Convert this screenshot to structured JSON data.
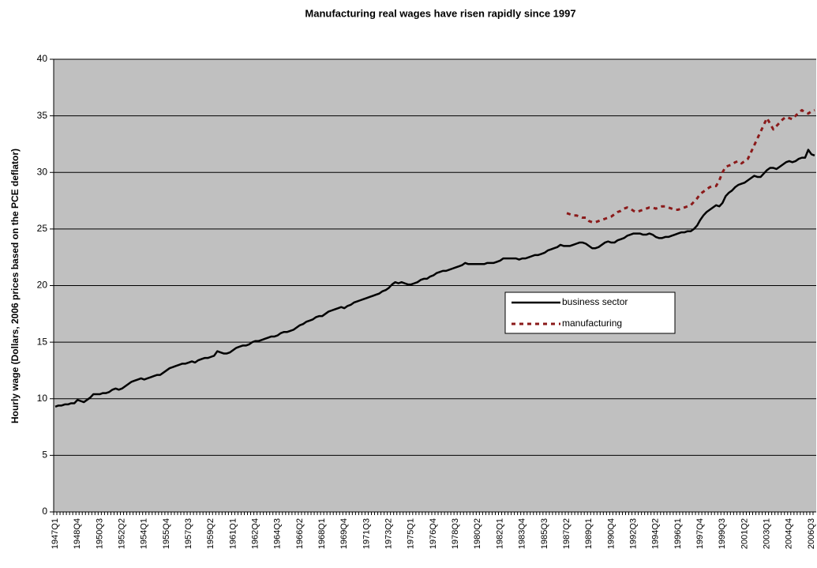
{
  "chart_data": {
    "type": "line",
    "title": "Manufacturing real wages have risen rapidly since 1997",
    "y_label": "Hourly wage (Dollars, 2006 prices based on the PCE deflator)",
    "ylim": [
      0,
      40
    ],
    "yticks": [
      0,
      5,
      10,
      15,
      20,
      25,
      30,
      35,
      40
    ],
    "grid": true,
    "categories": [
      "1947Q1",
      null,
      null,
      null,
      null,
      null,
      null,
      "1948Q4",
      null,
      null,
      null,
      null,
      null,
      null,
      "1950Q3",
      null,
      null,
      null,
      null,
      null,
      null,
      "1952Q2",
      null,
      null,
      null,
      null,
      null,
      null,
      "1954Q1",
      null,
      null,
      null,
      null,
      null,
      null,
      "1955Q4",
      null,
      null,
      null,
      null,
      null,
      null,
      "1957Q3",
      null,
      null,
      null,
      null,
      null,
      null,
      "1959Q2",
      null,
      null,
      null,
      null,
      null,
      null,
      "1961Q1",
      null,
      null,
      null,
      null,
      null,
      null,
      "1962Q4",
      null,
      null,
      null,
      null,
      null,
      null,
      "1964Q3",
      null,
      null,
      null,
      null,
      null,
      null,
      "1966Q2",
      null,
      null,
      null,
      null,
      null,
      null,
      "1968Q1",
      null,
      null,
      null,
      null,
      null,
      null,
      "1969Q4",
      null,
      null,
      null,
      null,
      null,
      null,
      "1971Q3",
      null,
      null,
      null,
      null,
      null,
      null,
      "1973Q2",
      null,
      null,
      null,
      null,
      null,
      null,
      "1975Q1",
      null,
      null,
      null,
      null,
      null,
      null,
      "1976Q4",
      null,
      null,
      null,
      null,
      null,
      null,
      "1978Q3",
      null,
      null,
      null,
      null,
      null,
      null,
      "1980Q2",
      null,
      null,
      null,
      null,
      null,
      null,
      "1982Q1",
      null,
      null,
      null,
      null,
      null,
      null,
      "1983Q4",
      null,
      null,
      null,
      null,
      null,
      null,
      "1985Q3",
      null,
      null,
      null,
      null,
      null,
      null,
      "1987Q2",
      null,
      null,
      null,
      null,
      null,
      null,
      "1989Q1",
      null,
      null,
      null,
      null,
      null,
      null,
      "1990Q4",
      null,
      null,
      null,
      null,
      null,
      null,
      "1992Q3",
      null,
      null,
      null,
      null,
      null,
      null,
      "1994Q2",
      null,
      null,
      null,
      null,
      null,
      null,
      "1996Q1",
      null,
      null,
      null,
      null,
      null,
      null,
      "1997Q4",
      null,
      null,
      null,
      null,
      null,
      null,
      "1999Q3",
      null,
      null,
      null,
      null,
      null,
      null,
      "2001Q2",
      null,
      null,
      null,
      null,
      null,
      null,
      "2003Q1",
      null,
      null,
      null,
      null,
      null,
      null,
      "2004Q4",
      null,
      null,
      null,
      null,
      null,
      null,
      "2006Q3",
      null
    ],
    "series": [
      {
        "name": "business sector",
        "color": "#000000",
        "dashed": false,
        "values": [
          9.3,
          9.4,
          9.4,
          9.5,
          9.5,
          9.6,
          9.6,
          9.9,
          9.8,
          9.7,
          9.9,
          10.1,
          10.4,
          10.4,
          10.4,
          10.5,
          10.5,
          10.6,
          10.8,
          10.9,
          10.8,
          10.9,
          11.1,
          11.3,
          11.5,
          11.6,
          11.7,
          11.8,
          11.7,
          11.8,
          11.9,
          12.0,
          12.1,
          12.1,
          12.3,
          12.5,
          12.7,
          12.8,
          12.9,
          13.0,
          13.1,
          13.1,
          13.2,
          13.3,
          13.2,
          13.4,
          13.5,
          13.6,
          13.6,
          13.7,
          13.8,
          14.2,
          14.1,
          14.0,
          14.0,
          14.1,
          14.3,
          14.5,
          14.6,
          14.7,
          14.7,
          14.8,
          15.0,
          15.1,
          15.1,
          15.2,
          15.3,
          15.4,
          15.5,
          15.5,
          15.6,
          15.8,
          15.9,
          15.9,
          16.0,
          16.1,
          16.3,
          16.5,
          16.6,
          16.8,
          16.9,
          17.0,
          17.2,
          17.3,
          17.3,
          17.5,
          17.7,
          17.8,
          17.9,
          18.0,
          18.1,
          18.0,
          18.2,
          18.3,
          18.5,
          18.6,
          18.7,
          18.8,
          18.9,
          19.0,
          19.1,
          19.2,
          19.3,
          19.5,
          19.6,
          19.8,
          20.1,
          20.3,
          20.2,
          20.3,
          20.2,
          20.1,
          20.1,
          20.2,
          20.3,
          20.5,
          20.6,
          20.6,
          20.8,
          20.9,
          21.1,
          21.2,
          21.3,
          21.3,
          21.4,
          21.5,
          21.6,
          21.7,
          21.8,
          22.0,
          21.9,
          21.9,
          21.9,
          21.9,
          21.9,
          21.9,
          22.0,
          22.0,
          22.0,
          22.1,
          22.2,
          22.4,
          22.4,
          22.4,
          22.4,
          22.4,
          22.3,
          22.4,
          22.4,
          22.5,
          22.6,
          22.7,
          22.7,
          22.8,
          22.9,
          23.1,
          23.2,
          23.3,
          23.4,
          23.6,
          23.5,
          23.5,
          23.5,
          23.6,
          23.7,
          23.8,
          23.8,
          23.7,
          23.5,
          23.3,
          23.3,
          23.4,
          23.6,
          23.8,
          23.9,
          23.8,
          23.8,
          24.0,
          24.1,
          24.2,
          24.4,
          24.5,
          24.6,
          24.6,
          24.6,
          24.5,
          24.5,
          24.6,
          24.5,
          24.3,
          24.2,
          24.2,
          24.3,
          24.3,
          24.4,
          24.5,
          24.6,
          24.7,
          24.7,
          24.8,
          24.8,
          25.0,
          25.3,
          25.8,
          26.2,
          26.5,
          26.7,
          26.9,
          27.1,
          27.0,
          27.3,
          27.9,
          28.2,
          28.4,
          28.7,
          28.9,
          29.0,
          29.1,
          29.3,
          29.5,
          29.7,
          29.6,
          29.6,
          29.9,
          30.2,
          30.4,
          30.4,
          30.3,
          30.5,
          30.7,
          30.9,
          31.0,
          30.9,
          31.0,
          31.2,
          31.3,
          31.3,
          32.0,
          31.6,
          31.5
        ]
      },
      {
        "name": "manufacturing",
        "color": "#8b1a1a",
        "dashed": true,
        "values": [
          null,
          null,
          null,
          null,
          null,
          null,
          null,
          null,
          null,
          null,
          null,
          null,
          null,
          null,
          null,
          null,
          null,
          null,
          null,
          null,
          null,
          null,
          null,
          null,
          null,
          null,
          null,
          null,
          null,
          null,
          null,
          null,
          null,
          null,
          null,
          null,
          null,
          null,
          null,
          null,
          null,
          null,
          null,
          null,
          null,
          null,
          null,
          null,
          null,
          null,
          null,
          null,
          null,
          null,
          null,
          null,
          null,
          null,
          null,
          null,
          null,
          null,
          null,
          null,
          null,
          null,
          null,
          null,
          null,
          null,
          null,
          null,
          null,
          null,
          null,
          null,
          null,
          null,
          null,
          null,
          null,
          null,
          null,
          null,
          null,
          null,
          null,
          null,
          null,
          null,
          null,
          null,
          null,
          null,
          null,
          null,
          null,
          null,
          null,
          null,
          null,
          null,
          null,
          null,
          null,
          null,
          null,
          null,
          null,
          null,
          null,
          null,
          null,
          null,
          null,
          null,
          null,
          null,
          null,
          null,
          null,
          null,
          null,
          null,
          null,
          null,
          null,
          null,
          null,
          null,
          null,
          null,
          null,
          null,
          null,
          null,
          null,
          null,
          null,
          null,
          null,
          null,
          null,
          null,
          null,
          null,
          null,
          null,
          null,
          null,
          null,
          null,
          null,
          null,
          null,
          null,
          null,
          null,
          null,
          null,
          null,
          26.4,
          26.3,
          26.2,
          26.2,
          26.1,
          26.0,
          26.0,
          25.7,
          25.6,
          25.6,
          25.7,
          25.8,
          25.9,
          26.0,
          26.1,
          26.3,
          26.5,
          26.6,
          26.8,
          26.9,
          26.8,
          26.6,
          26.5,
          26.6,
          26.7,
          26.8,
          26.9,
          26.9,
          26.8,
          26.9,
          27.0,
          27.0,
          26.9,
          26.8,
          26.7,
          26.7,
          26.8,
          26.9,
          27.0,
          27.1,
          27.4,
          27.7,
          28.1,
          28.3,
          28.5,
          28.7,
          28.8,
          28.8,
          29.3,
          30.0,
          30.5,
          30.6,
          30.7,
          30.9,
          31.0,
          30.8,
          31.0,
          31.2,
          31.8,
          32.4,
          33.0,
          33.6,
          34.2,
          34.8,
          34.3,
          33.8,
          34.1,
          34.4,
          34.7,
          34.9,
          34.8,
          34.7,
          35.0,
          35.3,
          35.5,
          35.3,
          35.2,
          35.4,
          35.5
        ]
      }
    ]
  }
}
